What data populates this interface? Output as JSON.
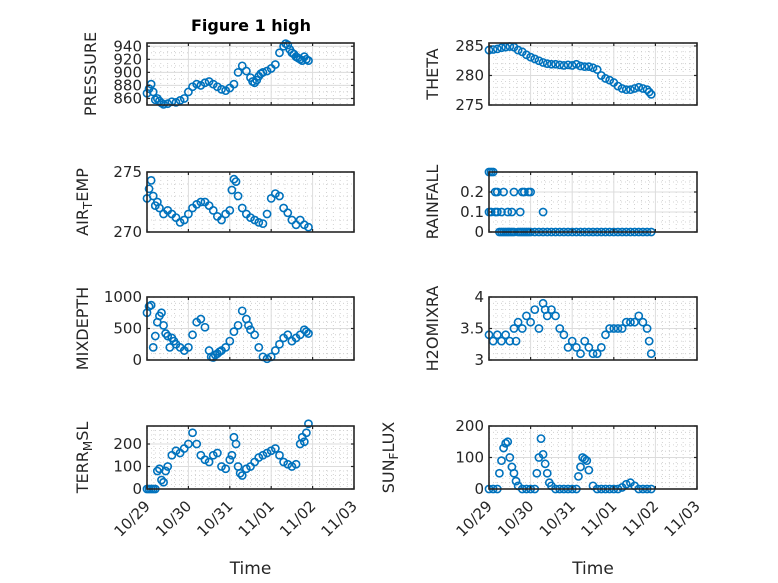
{
  "figure": {
    "title": "Figure 1 high",
    "marker_color": "#0072BD"
  },
  "chart_data": [
    {
      "type": "scatter",
      "id": "pressure",
      "title": "Figure 1 high",
      "ylabel": "PRESSURE",
      "ylabel_parts": [
        {
          "t": "PRESSURE"
        }
      ],
      "xlabel": "",
      "ylim": [
        850,
        945
      ],
      "yticks": [
        860,
        880,
        900,
        920,
        940
      ],
      "xticks": [
        0,
        1,
        2,
        3,
        4,
        5
      ],
      "xticklabels": [
        "10/29",
        "10/30",
        "10/31",
        "11/01",
        "11/02",
        "11/03"
      ],
      "show_xticklabels": false,
      "x_unit": "days since 10/29",
      "grid": true,
      "x": [
        0.0,
        0.05,
        0.1,
        0.15,
        0.2,
        0.25,
        0.3,
        0.35,
        0.4,
        0.5,
        0.6,
        0.7,
        0.8,
        0.9,
        1.0,
        1.1,
        1.2,
        1.3,
        1.4,
        1.5,
        1.6,
        1.7,
        1.8,
        1.9,
        2.0,
        2.1,
        2.2,
        2.3,
        2.4,
        2.5,
        2.55,
        2.6,
        2.65,
        2.7,
        2.75,
        2.8,
        2.9,
        3.0,
        3.1,
        3.2,
        3.3,
        3.35,
        3.4,
        3.45,
        3.5,
        3.55,
        3.6,
        3.65,
        3.7,
        3.75,
        3.8,
        3.85,
        3.9
      ],
      "y": [
        868,
        875,
        882,
        870,
        858,
        860,
        856,
        853,
        851,
        852,
        855,
        854,
        857,
        860,
        870,
        878,
        882,
        880,
        884,
        886,
        882,
        878,
        874,
        872,
        876,
        882,
        900,
        910,
        902,
        892,
        886,
        884,
        888,
        894,
        898,
        900,
        902,
        906,
        912,
        930,
        940,
        944,
        942,
        935,
        930,
        928,
        924,
        922,
        920,
        918,
        924,
        920,
        918
      ]
    },
    {
      "type": "scatter",
      "id": "theta",
      "title": "",
      "ylabel": "THETA",
      "ylabel_parts": [
        {
          "t": "THETA"
        }
      ],
      "xlabel": "",
      "ylim": [
        275,
        285.5
      ],
      "yticks": [
        275,
        280,
        285
      ],
      "xticks": [
        0,
        1,
        2,
        3,
        4,
        5
      ],
      "xticklabels": [
        "10/29",
        "10/30",
        "10/31",
        "11/01",
        "11/02",
        "11/03"
      ],
      "show_xticklabels": false,
      "x_unit": "days since 10/29",
      "grid": true,
      "x": [
        0.0,
        0.1,
        0.2,
        0.3,
        0.4,
        0.5,
        0.6,
        0.7,
        0.8,
        0.9,
        1.0,
        1.1,
        1.2,
        1.3,
        1.4,
        1.5,
        1.6,
        1.7,
        1.8,
        1.9,
        2.0,
        2.1,
        2.2,
        2.3,
        2.4,
        2.5,
        2.6,
        2.7,
        2.8,
        2.9,
        3.0,
        3.1,
        3.2,
        3.3,
        3.4,
        3.5,
        3.6,
        3.7,
        3.8,
        3.85,
        3.9
      ],
      "y": [
        284.3,
        284.4,
        284.5,
        284.7,
        284.8,
        284.9,
        284.8,
        284.3,
        284.0,
        283.5,
        283.1,
        282.8,
        282.5,
        282.2,
        282.0,
        281.9,
        281.9,
        281.8,
        281.7,
        281.8,
        281.7,
        281.9,
        281.6,
        281.5,
        281.5,
        281.3,
        281.0,
        280.0,
        279.5,
        279.2,
        278.8,
        278.2,
        277.8,
        277.6,
        277.6,
        277.8,
        278.0,
        277.8,
        277.6,
        277.2,
        276.8
      ]
    },
    {
      "type": "scatter",
      "id": "air_temp",
      "title": "",
      "ylabel": "AIR_TEMP",
      "ylabel_parts": [
        {
          "t": "AIR"
        },
        {
          "t": "T",
          "sub": true
        },
        {
          "t": "EMP"
        }
      ],
      "xlabel": "",
      "ylim": [
        270,
        275
      ],
      "yticks": [
        270,
        275
      ],
      "xticks": [
        0,
        1,
        2,
        3,
        4,
        5
      ],
      "xticklabels": [
        "10/29",
        "10/30",
        "10/31",
        "11/01",
        "11/02",
        "11/03"
      ],
      "show_xticklabels": false,
      "x_unit": "days since 10/29",
      "grid": true,
      "x": [
        0.0,
        0.05,
        0.1,
        0.15,
        0.2,
        0.25,
        0.3,
        0.4,
        0.5,
        0.6,
        0.7,
        0.8,
        0.9,
        1.0,
        1.1,
        1.2,
        1.3,
        1.4,
        1.5,
        1.6,
        1.7,
        1.8,
        1.9,
        2.0,
        2.05,
        2.1,
        2.15,
        2.2,
        2.3,
        2.4,
        2.5,
        2.6,
        2.7,
        2.8,
        2.9,
        3.0,
        3.1,
        3.2,
        3.3,
        3.4,
        3.5,
        3.6,
        3.7,
        3.8,
        3.9
      ],
      "y": [
        272.8,
        273.6,
        274.3,
        273.0,
        272.2,
        272.5,
        272.0,
        271.5,
        271.8,
        271.5,
        271.2,
        270.8,
        271.0,
        271.5,
        272.0,
        272.3,
        272.5,
        272.5,
        272.2,
        271.8,
        271.3,
        271.0,
        271.5,
        271.8,
        273.5,
        274.4,
        274.2,
        273.0,
        272.0,
        271.5,
        271.2,
        271.0,
        270.8,
        270.7,
        271.5,
        272.8,
        273.2,
        273.0,
        272.0,
        271.6,
        271.0,
        270.6,
        271.0,
        270.6,
        270.4
      ]
    },
    {
      "type": "scatter",
      "id": "rainfall",
      "title": "",
      "ylabel": "RAINFALL",
      "ylabel_parts": [
        {
          "t": "RAINFALL"
        }
      ],
      "xlabel": "",
      "ylim": [
        0,
        0.3
      ],
      "yticks": [
        0,
        0.1,
        0.2
      ],
      "yticklabels": [
        "0",
        "0.1",
        "0.2"
      ],
      "xticks": [
        0,
        1,
        2,
        3,
        4,
        5
      ],
      "xticklabels": [
        "10/29",
        "10/30",
        "10/31",
        "11/01",
        "11/02",
        "11/03"
      ],
      "show_xticklabels": false,
      "x_unit": "days since 10/29",
      "grid": true,
      "x": [
        0.0,
        0.05,
        0.1,
        0.15,
        0.2,
        0.25,
        0.3,
        0.35,
        0.4,
        0.45,
        0.5,
        0.55,
        0.6,
        0.7,
        0.75,
        0.8,
        0.85,
        0.9,
        0.95,
        1.0,
        1.1,
        1.2,
        1.3,
        1.4,
        1.5,
        1.6,
        1.7,
        1.8,
        1.9,
        2.0,
        2.1,
        2.2,
        2.3,
        2.4,
        2.5,
        2.6,
        2.7,
        2.8,
        2.9,
        3.0,
        3.1,
        3.2,
        3.3,
        3.4,
        3.5,
        3.6,
        3.7,
        3.8,
        3.9,
        0.0,
        0.05,
        0.15,
        0.2,
        0.3,
        0.35,
        0.45,
        0.55,
        0.6,
        0.75,
        0.8,
        0.85,
        0.95,
        1.0,
        1.3
      ],
      "y": [
        0.3,
        0.3,
        0.3,
        0.2,
        0.2,
        0,
        0,
        0,
        0,
        0,
        0,
        0,
        0,
        0,
        0,
        0,
        0,
        0,
        0,
        0,
        0,
        0,
        0,
        0,
        0,
        0,
        0,
        0,
        0,
        0,
        0,
        0,
        0,
        0,
        0,
        0,
        0,
        0,
        0,
        0,
        0,
        0,
        0,
        0,
        0,
        0,
        0,
        0,
        0,
        0.1,
        0.1,
        0.1,
        0.1,
        0.1,
        0.2,
        0.1,
        0.1,
        0.2,
        0.1,
        0.2,
        0.2,
        0.2,
        0.2,
        0.1
      ]
    },
    {
      "type": "scatter",
      "id": "mixdepth",
      "title": "",
      "ylabel": "MIXDEPTH",
      "ylabel_parts": [
        {
          "t": "MIXDEPTH"
        }
      ],
      "xlabel": "",
      "ylim": [
        0,
        1000
      ],
      "yticks": [
        0,
        500,
        1000
      ],
      "xticks": [
        0,
        1,
        2,
        3,
        4,
        5
      ],
      "xticklabels": [
        "10/29",
        "10/30",
        "10/31",
        "11/01",
        "11/02",
        "11/03"
      ],
      "show_xticklabels": false,
      "x_unit": "days since 10/29",
      "grid": true,
      "x": [
        0.0,
        0.05,
        0.1,
        0.15,
        0.2,
        0.25,
        0.3,
        0.35,
        0.4,
        0.45,
        0.5,
        0.55,
        0.6,
        0.65,
        0.7,
        0.8,
        0.9,
        1.0,
        1.1,
        1.2,
        1.3,
        1.4,
        1.5,
        1.55,
        1.6,
        1.65,
        1.7,
        1.75,
        1.8,
        1.9,
        2.0,
        2.1,
        2.2,
        2.3,
        2.4,
        2.45,
        2.5,
        2.6,
        2.7,
        2.8,
        2.9,
        3.0,
        3.1,
        3.2,
        3.3,
        3.4,
        3.5,
        3.6,
        3.7,
        3.8,
        3.85,
        3.9
      ],
      "y": [
        750,
        850,
        870,
        200,
        380,
        600,
        700,
        750,
        550,
        420,
        380,
        200,
        350,
        300,
        250,
        200,
        150,
        200,
        400,
        600,
        650,
        520,
        150,
        50,
        40,
        80,
        100,
        130,
        150,
        200,
        300,
        450,
        550,
        780,
        650,
        550,
        480,
        400,
        200,
        50,
        20,
        50,
        150,
        250,
        350,
        400,
        300,
        350,
        400,
        480,
        450,
        420
      ]
    },
    {
      "type": "scatter",
      "id": "h2omixra",
      "title": "",
      "ylabel": "H2OMIXRA",
      "ylabel_parts": [
        {
          "t": "H2OMIXRA"
        }
      ],
      "xlabel": "",
      "ylim": [
        3,
        4
      ],
      "yticks": [
        3,
        3.5,
        4
      ],
      "xticks": [
        0,
        1,
        2,
        3,
        4,
        5
      ],
      "xticklabels": [
        "10/29",
        "10/30",
        "10/31",
        "11/01",
        "11/02",
        "11/03"
      ],
      "show_xticklabels": false,
      "x_unit": "days since 10/29",
      "grid": true,
      "x": [
        0.0,
        0.1,
        0.2,
        0.3,
        0.4,
        0.5,
        0.6,
        0.65,
        0.7,
        0.8,
        0.9,
        1.0,
        1.1,
        1.2,
        1.3,
        1.35,
        1.4,
        1.5,
        1.6,
        1.7,
        1.8,
        1.9,
        2.0,
        2.1,
        2.2,
        2.3,
        2.4,
        2.5,
        2.6,
        2.7,
        2.8,
        2.9,
        3.0,
        3.1,
        3.2,
        3.3,
        3.4,
        3.5,
        3.6,
        3.7,
        3.8,
        3.85,
        3.9
      ],
      "y": [
        3.4,
        3.3,
        3.4,
        3.3,
        3.4,
        3.3,
        3.5,
        3.3,
        3.6,
        3.5,
        3.7,
        3.6,
        3.8,
        3.5,
        3.9,
        3.8,
        3.7,
        3.8,
        3.7,
        3.5,
        3.4,
        3.2,
        3.3,
        3.2,
        3.1,
        3.3,
        3.2,
        3.1,
        3.1,
        3.2,
        3.4,
        3.5,
        3.5,
        3.5,
        3.5,
        3.6,
        3.6,
        3.6,
        3.7,
        3.6,
        3.5,
        3.3,
        3.1
      ]
    },
    {
      "type": "scatter",
      "id": "terr_msl",
      "title": "",
      "ylabel": "TERR_MSL",
      "ylabel_parts": [
        {
          "t": "TERR"
        },
        {
          "t": "M",
          "sub": true
        },
        {
          "t": "SL"
        }
      ],
      "xlabel": "Time",
      "ylim": [
        0,
        280
      ],
      "yticks": [
        0,
        100,
        200
      ],
      "xticks": [
        0,
        1,
        2,
        3,
        4,
        5
      ],
      "xticklabels": [
        "10/29",
        "10/30",
        "10/31",
        "11/01",
        "11/02",
        "11/03"
      ],
      "show_xticklabels": true,
      "x_unit": "days since 10/29",
      "grid": true,
      "x": [
        0.0,
        0.05,
        0.1,
        0.15,
        0.2,
        0.25,
        0.3,
        0.35,
        0.4,
        0.45,
        0.5,
        0.6,
        0.7,
        0.8,
        0.9,
        1.0,
        1.1,
        1.2,
        1.3,
        1.4,
        1.5,
        1.6,
        1.7,
        1.8,
        1.9,
        2.0,
        2.05,
        2.1,
        2.15,
        2.2,
        2.25,
        2.3,
        2.4,
        2.5,
        2.6,
        2.7,
        2.8,
        2.9,
        3.0,
        3.1,
        3.2,
        3.3,
        3.4,
        3.5,
        3.6,
        3.7,
        3.75,
        3.8,
        3.85,
        3.9
      ],
      "y": [
        0,
        0,
        0,
        0,
        0,
        80,
        90,
        40,
        30,
        80,
        100,
        150,
        170,
        160,
        180,
        200,
        250,
        200,
        150,
        130,
        120,
        150,
        160,
        100,
        90,
        130,
        150,
        230,
        200,
        100,
        70,
        60,
        90,
        100,
        120,
        140,
        150,
        160,
        170,
        180,
        150,
        120,
        110,
        100,
        110,
        200,
        230,
        210,
        250,
        290
      ]
    },
    {
      "type": "scatter",
      "id": "sun_flux",
      "title": "",
      "ylabel": "SUN_FLUX",
      "ylabel_parts": [
        {
          "t": "SUN"
        },
        {
          "t": "F",
          "sub": true
        },
        {
          "t": "LUX"
        }
      ],
      "xlabel": "Time",
      "ylim": [
        0,
        200
      ],
      "yticks": [
        0,
        100,
        200
      ],
      "xticks": [
        0,
        1,
        2,
        3,
        4,
        5
      ],
      "xticklabels": [
        "10/29",
        "10/30",
        "10/31",
        "11/01",
        "11/02",
        "11/03"
      ],
      "show_xticklabels": true,
      "x_unit": "days since 10/29",
      "grid": true,
      "x": [
        0.0,
        0.1,
        0.2,
        0.25,
        0.3,
        0.35,
        0.4,
        0.45,
        0.5,
        0.55,
        0.6,
        0.65,
        0.7,
        0.8,
        0.9,
        1.0,
        1.1,
        1.15,
        1.2,
        1.25,
        1.3,
        1.35,
        1.4,
        1.45,
        1.5,
        1.6,
        1.7,
        1.8,
        1.9,
        2.0,
        2.1,
        2.15,
        2.2,
        2.25,
        2.3,
        2.35,
        2.4,
        2.5,
        2.6,
        2.7,
        2.8,
        2.9,
        3.0,
        3.1,
        3.2,
        3.3,
        3.4,
        3.5,
        3.6,
        3.7,
        3.8,
        3.9
      ],
      "y": [
        0,
        0,
        0,
        50,
        90,
        130,
        145,
        150,
        100,
        70,
        50,
        25,
        10,
        0,
        0,
        0,
        0,
        50,
        100,
        160,
        110,
        80,
        50,
        20,
        10,
        0,
        0,
        0,
        0,
        0,
        0,
        40,
        70,
        100,
        95,
        90,
        60,
        10,
        0,
        0,
        0,
        0,
        0,
        0,
        5,
        15,
        20,
        10,
        0,
        0,
        0,
        0
      ]
    }
  ]
}
